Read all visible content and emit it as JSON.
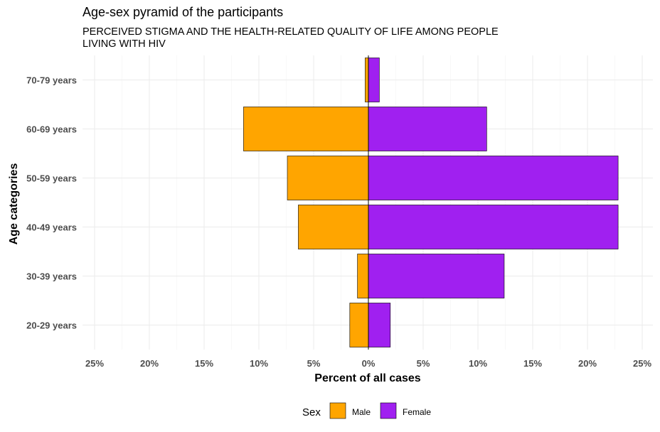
{
  "chart_data": {
    "type": "bar",
    "orientation": "horizontal-pyramid",
    "title": "Age-sex pyramid of the participants",
    "subtitle": "PERCEIVED STIGMA AND THE HEALTH-RELATED QUALITY OF LIFE AMONG PEOPLE LIVING WITH HIV",
    "xlabel": "Percent of all cases",
    "ylabel": "Age categories",
    "categories": [
      "20-29 years",
      "30-39 years",
      "40-49 years",
      "50-59 years",
      "60-69 years",
      "70-79 years"
    ],
    "series": [
      {
        "name": "Male",
        "color": "#FFA500",
        "values": [
          1.7,
          1.0,
          6.4,
          7.4,
          11.4,
          0.3
        ]
      },
      {
        "name": "Female",
        "color": "#A020F0",
        "values": [
          2.0,
          12.4,
          22.8,
          22.8,
          10.8,
          1.0
        ]
      }
    ],
    "xlim": [
      -25.5,
      25.5
    ],
    "x_ticks": [
      -25,
      -20,
      -15,
      -10,
      -5,
      0,
      5,
      10,
      15,
      20,
      25
    ],
    "x_tick_labels": [
      "25%",
      "20%",
      "15%",
      "10%",
      "5%",
      "0%",
      "5%",
      "10%",
      "15%",
      "20%",
      "25%"
    ],
    "grid": true,
    "legend": {
      "title": "Sex",
      "position": "bottom"
    }
  }
}
